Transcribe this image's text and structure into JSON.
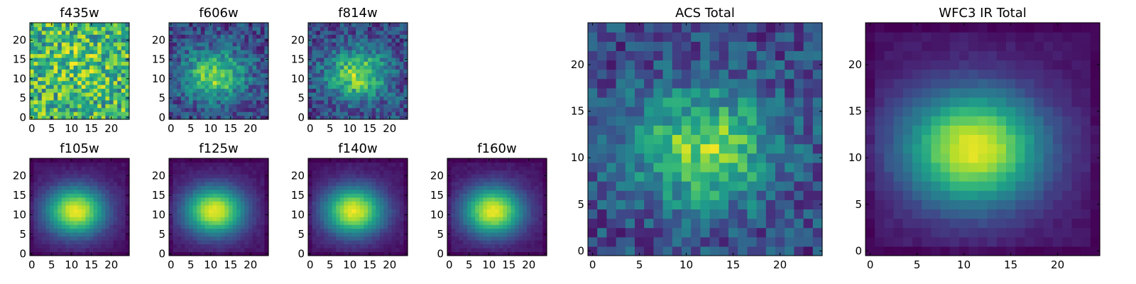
{
  "chart_data": [
    {
      "type": "heatmap",
      "title": "f435w",
      "xticks": [
        "0",
        "5",
        "10",
        "15",
        "20"
      ],
      "yticks": [
        "0",
        "5",
        "10",
        "15",
        "20"
      ],
      "xlim": [
        -0.5,
        24.5
      ],
      "ylim": [
        -0.5,
        24.5
      ],
      "pattern": "noise",
      "peak": [
        12,
        14
      ],
      "grid": false
    },
    {
      "type": "heatmap",
      "title": "f606w",
      "xticks": [
        "0",
        "5",
        "10",
        "15",
        "20"
      ],
      "yticks": [
        "0",
        "5",
        "10",
        "15",
        "20"
      ],
      "xlim": [
        -0.5,
        24.5
      ],
      "ylim": [
        -0.5,
        24.5
      ],
      "pattern": "noisy-blob",
      "peak": [
        11,
        11
      ],
      "grid": false
    },
    {
      "type": "heatmap",
      "title": "f814w",
      "xticks": [
        "0",
        "5",
        "10",
        "15",
        "20"
      ],
      "yticks": [
        "0",
        "5",
        "10",
        "15",
        "20"
      ],
      "xlim": [
        -0.5,
        24.5
      ],
      "ylim": [
        -0.5,
        24.5
      ],
      "pattern": "noisy-blob",
      "peak": [
        12,
        11
      ],
      "grid": false
    },
    {
      "type": "heatmap",
      "title": "f105w",
      "xticks": [
        "0",
        "5",
        "10",
        "15",
        "20"
      ],
      "yticks": [
        "0",
        "5",
        "10",
        "15",
        "20"
      ],
      "xlim": [
        -0.5,
        24.5
      ],
      "ylim": [
        -0.5,
        24.5
      ],
      "pattern": "smooth-blob",
      "peak": [
        11,
        11
      ],
      "grid": false
    },
    {
      "type": "heatmap",
      "title": "f125w",
      "xticks": [
        "0",
        "5",
        "10",
        "15",
        "20"
      ],
      "yticks": [
        "0",
        "5",
        "10",
        "15",
        "20"
      ],
      "xlim": [
        -0.5,
        24.5
      ],
      "ylim": [
        -0.5,
        24.5
      ],
      "pattern": "smooth-blob",
      "peak": [
        11,
        11
      ],
      "grid": false
    },
    {
      "type": "heatmap",
      "title": "f140w",
      "xticks": [
        "0",
        "5",
        "10",
        "15",
        "20"
      ],
      "yticks": [
        "0",
        "5",
        "10",
        "15",
        "20"
      ],
      "xlim": [
        -0.5,
        24.5
      ],
      "ylim": [
        -0.5,
        24.5
      ],
      "pattern": "smooth-blob",
      "peak": [
        11,
        11
      ],
      "grid": false
    },
    {
      "type": "heatmap",
      "title": "f160w",
      "xticks": [
        "0",
        "5",
        "10",
        "15",
        "20"
      ],
      "yticks": [
        "0",
        "5",
        "10",
        "15",
        "20"
      ],
      "xlim": [
        -0.5,
        24.5
      ],
      "ylim": [
        -0.5,
        24.5
      ],
      "pattern": "smooth-blob",
      "peak": [
        11,
        11
      ],
      "grid": false
    },
    {
      "type": "heatmap",
      "title": "ACS Total",
      "xticks": [
        "0",
        "5",
        "10",
        "15",
        "20"
      ],
      "yticks": [
        "0",
        "5",
        "10",
        "15",
        "20"
      ],
      "xlim": [
        -0.5,
        24.5
      ],
      "ylim": [
        -0.5,
        24.5
      ],
      "pattern": "noisy-blob",
      "peak": [
        12,
        11
      ],
      "grid": false
    },
    {
      "type": "heatmap",
      "title": "WFC3 IR Total",
      "xticks": [
        "0",
        "5",
        "10",
        "15",
        "20"
      ],
      "yticks": [
        "0",
        "5",
        "10",
        "15",
        "20"
      ],
      "xlim": [
        -0.5,
        24.5
      ],
      "ylim": [
        -0.5,
        24.5
      ],
      "pattern": "smooth-blob",
      "peak": [
        11,
        11
      ],
      "grid": false
    }
  ],
  "colormap": [
    "#440154",
    "#482878",
    "#3e4989",
    "#31688e",
    "#26828e",
    "#1f9e89",
    "#35b779",
    "#6ece58",
    "#b5de2b",
    "#fde725"
  ]
}
